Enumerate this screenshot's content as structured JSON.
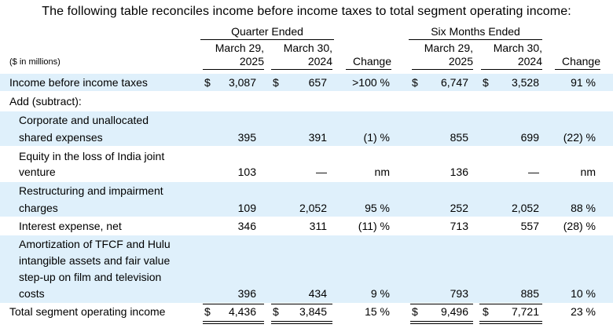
{
  "title": "The following table reconciles income before income taxes to total segment operating income:",
  "headers": {
    "quarter_group": "Quarter Ended",
    "six_group": "Six Months Ended",
    "col1": [
      "March 29,",
      "2025"
    ],
    "col2": [
      "March 30,",
      "2024"
    ],
    "col3": "Change",
    "col4": [
      "March 29,",
      "2025"
    ],
    "col5": [
      "March 30,",
      "2024"
    ],
    "col6": "Change",
    "units": "($ in millions)"
  },
  "rows": [
    {
      "label": [
        "Income before income taxes"
      ],
      "values": [
        "3,087",
        "657",
        ">100 %",
        "6,747",
        "3,528",
        "91 %"
      ],
      "dollar": true
    },
    {
      "label": [
        "Add (subtract):"
      ],
      "values": [
        "",
        "",
        "",
        "",
        "",
        ""
      ]
    },
    {
      "label": [
        "Corporate and unallocated",
        "shared expenses"
      ],
      "values": [
        "395",
        "391",
        "(1) %",
        "855",
        "699",
        "(22) %"
      ]
    },
    {
      "label": [
        "Equity in the loss of India joint",
        "venture"
      ],
      "values": [
        "103",
        "—",
        "nm",
        "136",
        "—",
        "nm"
      ]
    },
    {
      "label": [
        "Restructuring and impairment",
        "charges"
      ],
      "values": [
        "109",
        "2,052",
        "95 %",
        "252",
        "2,052",
        "88 %"
      ]
    },
    {
      "label": [
        "Interest expense, net"
      ],
      "values": [
        "346",
        "311",
        "(11) %",
        "713",
        "557",
        "(28) %"
      ]
    },
    {
      "label": [
        "Amortization of TFCF and Hulu",
        "intangible assets and fair value",
        "step-up on film and television",
        "costs"
      ],
      "values": [
        "396",
        "434",
        "9 %",
        "793",
        "885",
        "10 %"
      ]
    },
    {
      "label": [
        "Total segment operating income"
      ],
      "values": [
        "4,436",
        "3,845",
        "15 %",
        "9,496",
        "7,721",
        "23 %"
      ],
      "dollar": true
    }
  ],
  "dollar_sign": "$"
}
